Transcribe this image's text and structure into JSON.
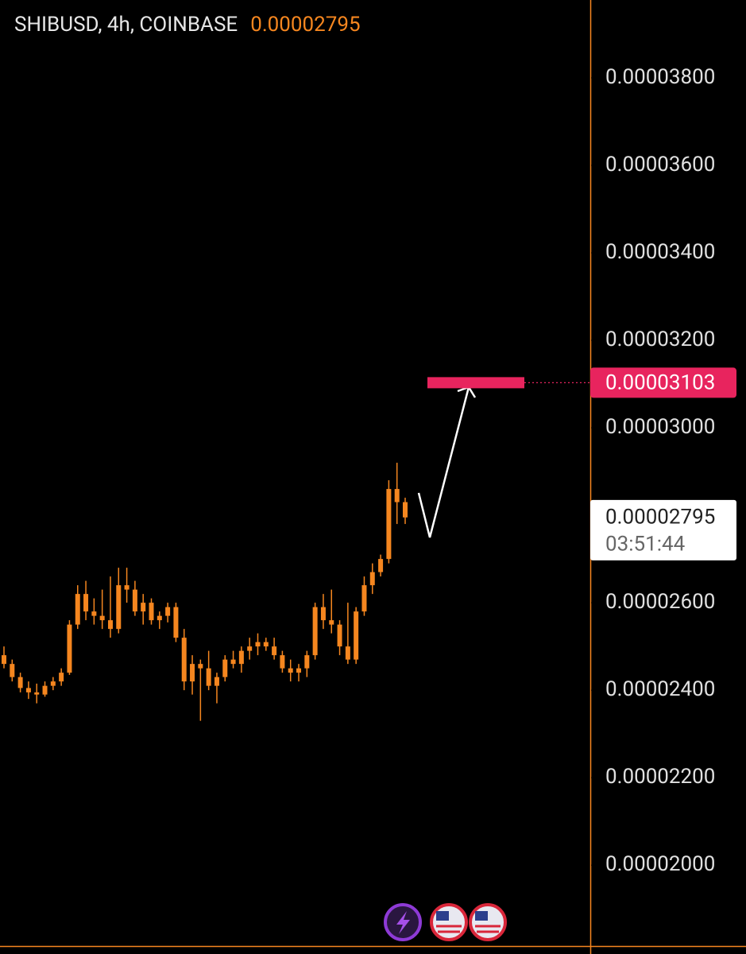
{
  "chart_data": {
    "type": "candlestick",
    "title": "SHIBUSD, 4h, COINBASE",
    "last_price": 2.795e-05,
    "countdown": "03:51:44",
    "target": 3.103e-05,
    "color": "#f5861f",
    "target_color": "#e8245e",
    "ylim": [
      1.815e-05,
      3.978e-05
    ],
    "yticks": [
      {
        "value": 2e-05,
        "label": "0.00002000"
      },
      {
        "value": 2.2e-05,
        "label": "0.00002200"
      },
      {
        "value": 2.4e-05,
        "label": "0.00002400"
      },
      {
        "value": 2.6e-05,
        "label": "0.00002600"
      },
      {
        "value": 3e-05,
        "label": "0.00003000"
      },
      {
        "value": 3.2e-05,
        "label": "0.00003200"
      },
      {
        "value": 3.4e-05,
        "label": "0.00003400"
      },
      {
        "value": 3.6e-05,
        "label": "0.00003600"
      },
      {
        "value": 3.8e-05,
        "label": "0.00003800"
      }
    ],
    "open": [
      2.48e-05,
      2.46e-05,
      2.43e-05,
      2.405e-05,
      2.395e-05,
      2.39e-05,
      2.41e-05,
      2.42e-05,
      2.44e-05,
      2.55e-05,
      2.62e-05,
      2.58e-05,
      2.57e-05,
      2.56e-05,
      2.54e-05,
      2.64e-05,
      2.63e-05,
      2.58e-05,
      2.6e-05,
      2.56e-05,
      2.57e-05,
      2.59e-05,
      2.52e-05,
      2.42e-05,
      2.46e-05,
      2.45e-05,
      2.41e-05,
      2.43e-05,
      2.47e-05,
      2.46e-05,
      2.49e-05,
      2.5e-05,
      2.51e-05,
      2.5e-05,
      2.48e-05,
      2.45e-05,
      2.44e-05,
      2.45e-05,
      2.48e-05,
      2.59e-05,
      2.56e-05,
      2.55e-05,
      2.5e-05,
      2.47e-05,
      2.58e-05,
      2.64e-05,
      2.67e-05,
      2.7e-05,
      2.86e-05,
      2.83e-05
    ],
    "high": [
      2.5e-05,
      2.47e-05,
      2.44e-05,
      2.42e-05,
      2.415e-05,
      2.42e-05,
      2.43e-05,
      2.45e-05,
      2.56e-05,
      2.64e-05,
      2.65e-05,
      2.61e-05,
      2.63e-05,
      2.66e-05,
      2.68e-05,
      2.68e-05,
      2.65e-05,
      2.62e-05,
      2.61e-05,
      2.58e-05,
      2.6e-05,
      2.6e-05,
      2.54e-05,
      2.48e-05,
      2.47e-05,
      2.49e-05,
      2.44e-05,
      2.48e-05,
      2.49e-05,
      2.5e-05,
      2.52e-05,
      2.53e-05,
      2.52e-05,
      2.52e-05,
      2.49e-05,
      2.47e-05,
      2.46e-05,
      2.49e-05,
      2.6e-05,
      2.62e-05,
      2.63e-05,
      2.56e-05,
      2.6e-05,
      2.59e-05,
      2.66e-05,
      2.69e-05,
      2.71e-05,
      2.88e-05,
      2.92e-05,
      2.84e-05
    ],
    "low": [
      2.45e-05,
      2.42e-05,
      2.395e-05,
      2.38e-05,
      2.37e-05,
      2.385e-05,
      2.4e-05,
      2.41e-05,
      2.435e-05,
      2.54e-05,
      2.56e-05,
      2.55e-05,
      2.54e-05,
      2.52e-05,
      2.53e-05,
      2.6e-05,
      2.57e-05,
      2.55e-05,
      2.55e-05,
      2.54e-05,
      2.555e-05,
      2.51e-05,
      2.4e-05,
      2.39e-05,
      2.33e-05,
      2.4e-05,
      2.37e-05,
      2.42e-05,
      2.45e-05,
      2.44e-05,
      2.47e-05,
      2.48e-05,
      2.49e-05,
      2.47e-05,
      2.44e-05,
      2.42e-05,
      2.42e-05,
      2.43e-05,
      2.47e-05,
      2.54e-05,
      2.53e-05,
      2.48e-05,
      2.46e-05,
      2.46e-05,
      2.57e-05,
      2.62e-05,
      2.66e-05,
      2.69e-05,
      2.78e-05,
      2.78e-05
    ],
    "close": [
      2.46e-05,
      2.43e-05,
      2.405e-05,
      2.395e-05,
      2.39e-05,
      2.41e-05,
      2.42e-05,
      2.44e-05,
      2.55e-05,
      2.62e-05,
      2.58e-05,
      2.57e-05,
      2.56e-05,
      2.54e-05,
      2.64e-05,
      2.63e-05,
      2.58e-05,
      2.6e-05,
      2.56e-05,
      2.57e-05,
      2.59e-05,
      2.52e-05,
      2.42e-05,
      2.46e-05,
      2.45e-05,
      2.41e-05,
      2.43e-05,
      2.47e-05,
      2.46e-05,
      2.49e-05,
      2.5e-05,
      2.51e-05,
      2.5e-05,
      2.48e-05,
      2.45e-05,
      2.44e-05,
      2.45e-05,
      2.48e-05,
      2.59e-05,
      2.56e-05,
      2.55e-05,
      2.5e-05,
      2.47e-05,
      2.58e-05,
      2.64e-05,
      2.67e-05,
      2.7e-05,
      2.86e-05,
      2.83e-05,
      2.795e-05
    ]
  }
}
